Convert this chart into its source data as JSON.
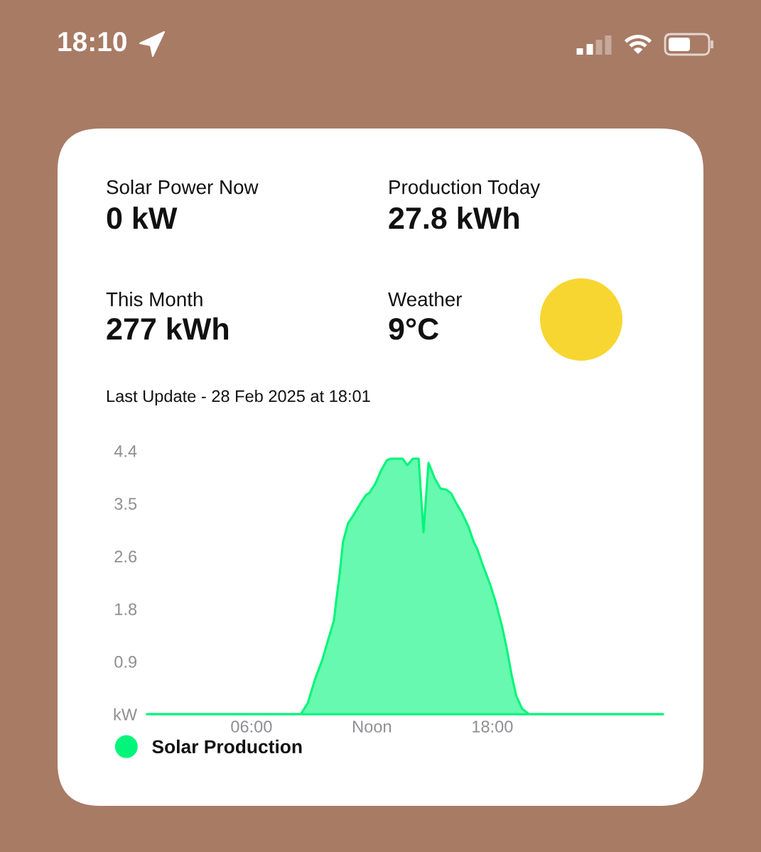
{
  "chart_data": [
    {
      "type": "other",
      "annotations": [
        "18:10",
        "Solar Power Now",
        "0 kW",
        "Production Today",
        "27.8 kWh",
        "This Month",
        "277 kWh",
        "Weather",
        "9°C",
        "Last Update - 28 Feb 2025 at 18:01"
      ]
    },
    {
      "type": "area",
      "x": [
        0.8,
        8.45,
        8.81,
        9.16,
        9.52,
        9.87,
        10.11,
        10.22,
        10.4,
        10.56,
        10.81,
        11.05,
        11.23,
        11.46,
        11.7,
        11.88,
        12.17,
        12.47,
        12.74,
        12.94,
        13.53,
        13.76,
        14.04,
        14.33,
        14.57,
        14.82,
        15.12,
        15.42,
        15.71,
        15.95,
        16.18,
        16.48,
        16.83,
        17.07,
        17.25,
        17.54,
        17.89,
        18.19,
        18.49,
        18.72,
        18.96,
        19.19,
        19.49,
        19.84,
        26.5
      ],
      "series": [
        {
          "name": "Solar Production",
          "color": "#00f57a",
          "values": [
            0,
            0,
            0.19,
            0.58,
            0.9,
            1.3,
            1.57,
            1.89,
            2.36,
            2.88,
            3.19,
            3.31,
            3.41,
            3.54,
            3.66,
            3.7,
            3.85,
            4.08,
            4.24,
            4.27,
            4.27,
            4.16,
            4.27,
            4.27,
            3.04,
            4.2,
            3.95,
            3.77,
            3.75,
            3.69,
            3.54,
            3.37,
            3.12,
            2.88,
            2.76,
            2.48,
            2.17,
            1.85,
            1.46,
            1.1,
            0.66,
            0.31,
            0.09,
            0,
            0
          ]
        }
      ],
      "xlim": [
        0.8,
        26.5
      ],
      "xticks": [
        {
          "value": 6,
          "label": "06:00"
        },
        {
          "value": 12,
          "label": "Noon"
        },
        {
          "value": 18,
          "label": "18:00"
        }
      ],
      "ylim": [
        0,
        4.4
      ],
      "yticks": [
        {
          "value": 0,
          "label": "kW"
        },
        {
          "value": 0.88,
          "label": "0.9"
        },
        {
          "value": 1.76,
          "label": "1.8"
        },
        {
          "value": 2.64,
          "label": "2.6"
        },
        {
          "value": 3.52,
          "label": "3.5"
        },
        4.4
      ],
      "legend": "bottom left"
    }
  ]
}
